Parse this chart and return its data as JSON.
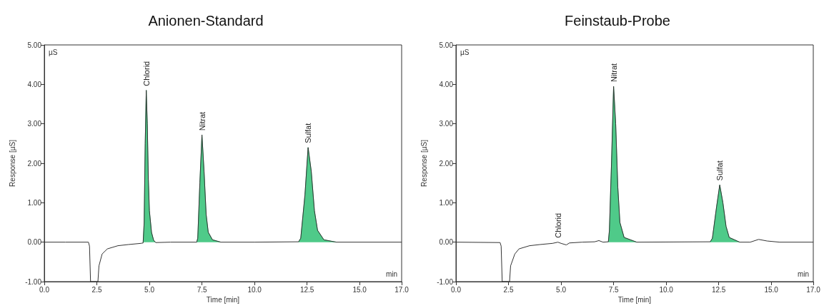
{
  "chart_data": [
    {
      "type": "line",
      "title": "Anionen-Standard",
      "xlabel": "Time [min]",
      "ylabel": "Response [µS]",
      "xlim": [
        0,
        17
      ],
      "xticks": [
        {
          "value": 0,
          "label": "0.0"
        },
        {
          "value": 2.5,
          "label": "2.5"
        },
        {
          "value": 5,
          "label": "5.0"
        },
        {
          "value": 7.5,
          "label": "7.5"
        },
        {
          "value": 10,
          "label": "10.0"
        },
        {
          "value": 12.5,
          "label": "12.5"
        },
        {
          "value": 15,
          "label": "15.0"
        },
        {
          "value": 17,
          "label": "17.0"
        }
      ],
      "ylim": [
        -1,
        5
      ],
      "yticks": [
        {
          "value": -1,
          "label": "-1.00"
        },
        {
          "value": 0,
          "label": "0.00"
        },
        {
          "value": 1,
          "label": "1.00"
        },
        {
          "value": 2,
          "label": "2.00"
        },
        {
          "value": 3,
          "label": "3.00"
        },
        {
          "value": 4,
          "label": "4.00"
        },
        {
          "value": 5,
          "label": "5.00"
        }
      ],
      "grid": false,
      "marker": "none",
      "annotations": [
        "µS",
        "min",
        {
          "text": "Chlorid",
          "x": 4.85,
          "y": 3.85
        },
        {
          "text": "Nitrat",
          "x": 7.5,
          "y": 2.72
        },
        {
          "text": "Sulfat",
          "x": 12.55,
          "y": 2.4
        }
      ],
      "series": [
        {
          "type": "area",
          "color": "#3cc47c",
          "x": [
            4.7,
            4.75,
            4.8,
            4.85,
            4.9,
            4.95,
            5.0,
            5.1,
            5.2,
            5.3
          ],
          "values": [
            -0.02,
            0.5,
            2.5,
            3.85,
            3.0,
            1.6,
            0.8,
            0.25,
            0.05,
            -0.01
          ]
        },
        {
          "type": "area",
          "color": "#3cc47c",
          "x": [
            7.25,
            7.3,
            7.4,
            7.5,
            7.6,
            7.7,
            7.8,
            8.0,
            8.4
          ],
          "values": [
            0.0,
            0.1,
            1.5,
            2.72,
            1.8,
            0.7,
            0.25,
            0.06,
            0.0
          ]
        },
        {
          "type": "area",
          "color": "#3cc47c",
          "x": [
            12.1,
            12.2,
            12.4,
            12.55,
            12.7,
            12.85,
            13.0,
            13.3,
            13.9
          ],
          "values": [
            0.01,
            0.1,
            1.2,
            2.4,
            1.8,
            0.8,
            0.3,
            0.06,
            0.0
          ]
        },
        {
          "color": "#333333",
          "x": [
            0,
            1,
            2.1,
            2.15,
            2.2,
            2.55,
            2.6,
            2.75,
            3.0,
            3.5,
            4.0,
            4.6,
            4.7,
            4.75,
            4.8,
            4.85,
            4.9,
            4.95,
            5.0,
            5.1,
            5.2,
            5.3,
            6,
            7.25,
            7.3,
            7.4,
            7.5,
            7.6,
            7.7,
            7.8,
            8.0,
            8.4,
            10,
            12.1,
            12.2,
            12.4,
            12.55,
            12.7,
            12.85,
            13.0,
            13.3,
            13.9,
            17
          ],
          "values": [
            0,
            0,
            0,
            -0.1,
            -1.0,
            -1.0,
            -0.6,
            -0.3,
            -0.17,
            -0.09,
            -0.06,
            -0.03,
            -0.02,
            0.5,
            2.5,
            3.85,
            3.0,
            1.6,
            0.8,
            0.25,
            0.05,
            -0.01,
            0,
            0.0,
            0.1,
            1.5,
            2.72,
            1.8,
            0.7,
            0.25,
            0.06,
            0.0,
            0,
            0.01,
            0.1,
            1.2,
            2.4,
            1.8,
            0.8,
            0.3,
            0.06,
            0.0,
            0
          ]
        }
      ]
    },
    {
      "type": "line",
      "title": "Feinstaub-Probe",
      "xlabel": "Time [min]",
      "ylabel": "Response [µS]",
      "xlim": [
        0,
        17
      ],
      "xticks": [
        {
          "value": 0,
          "label": "0.0"
        },
        {
          "value": 2.5,
          "label": "2.5"
        },
        {
          "value": 5,
          "label": "5.0"
        },
        {
          "value": 7.5,
          "label": "7.5"
        },
        {
          "value": 10,
          "label": "10.0"
        },
        {
          "value": 12.5,
          "label": "12.5"
        },
        {
          "value": 15,
          "label": "15.0"
        },
        {
          "value": 17,
          "label": "17.0"
        }
      ],
      "ylim": [
        -1,
        5
      ],
      "yticks": [
        {
          "value": -1,
          "label": "-1.00"
        },
        {
          "value": 0,
          "label": "0.00"
        },
        {
          "value": 1,
          "label": "1.00"
        },
        {
          "value": 2,
          "label": "2.00"
        },
        {
          "value": 3,
          "label": "3.00"
        },
        {
          "value": 4,
          "label": "4.00"
        },
        {
          "value": 5,
          "label": "5.00"
        }
      ],
      "grid": false,
      "marker": "none",
      "annotations": [
        "µS",
        "min",
        {
          "text": "Chlorid",
          "x": 4.85,
          "y": 0.0
        },
        {
          "text": "Nitrat",
          "x": 7.5,
          "y": 3.95
        },
        {
          "text": "Sulfat",
          "x": 12.55,
          "y": 1.45
        }
      ],
      "series": [
        {
          "type": "area",
          "color": "#3cc47c",
          "x": [
            7.25,
            7.3,
            7.4,
            7.5,
            7.6,
            7.7,
            7.8,
            8.0,
            8.6
          ],
          "values": [
            0.01,
            0.3,
            2.0,
            3.95,
            3.0,
            1.4,
            0.5,
            0.12,
            0.0
          ]
        },
        {
          "type": "area",
          "color": "#3cc47c",
          "x": [
            12.1,
            12.2,
            12.4,
            12.55,
            12.7,
            12.85,
            13.0,
            13.5
          ],
          "values": [
            0.01,
            0.1,
            0.9,
            1.45,
            1.0,
            0.4,
            0.12,
            0.0
          ]
        },
        {
          "color": "#333333",
          "x": [
            0,
            2.1,
            2.15,
            2.2,
            2.55,
            2.6,
            2.8,
            3.0,
            3.5,
            4.0,
            4.6,
            4.85,
            5.0,
            5.25,
            5.4,
            6.0,
            6.6,
            6.8,
            7.0,
            7.25,
            7.3,
            7.4,
            7.5,
            7.6,
            7.7,
            7.8,
            8.0,
            8.6,
            12.1,
            12.2,
            12.4,
            12.55,
            12.7,
            12.85,
            13.0,
            13.5,
            14.0,
            14.4,
            14.8,
            15.4,
            17
          ],
          "values": [
            0,
            -0.01,
            -0.1,
            -1.0,
            -1.0,
            -0.6,
            -0.3,
            -0.17,
            -0.09,
            -0.06,
            -0.03,
            0.0,
            -0.03,
            -0.07,
            -0.02,
            0,
            0.01,
            0.04,
            0.0,
            0.01,
            0.3,
            2.0,
            3.95,
            3.0,
            1.4,
            0.5,
            0.12,
            0.0,
            0.01,
            0.1,
            0.9,
            1.45,
            1.0,
            0.4,
            0.12,
            0.0,
            0.0,
            0.07,
            0.03,
            0,
            0
          ]
        }
      ]
    }
  ]
}
